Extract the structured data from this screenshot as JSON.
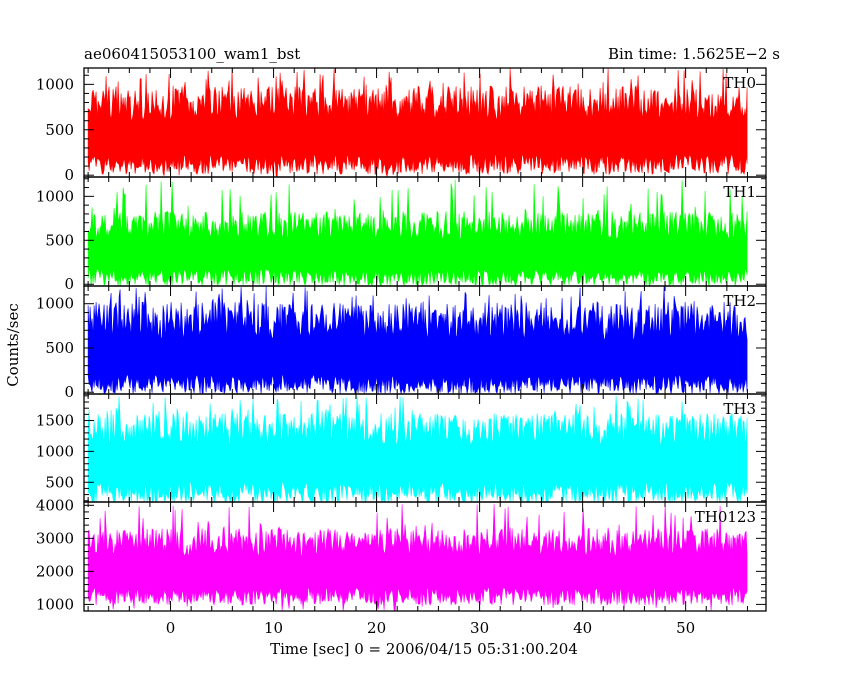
{
  "chart_data": {
    "type": "line",
    "title": "ae060415053100_wam1_bst",
    "subtitle": "Bin time: 1.5625E−2 s",
    "xlabel": "Time [sec] 0 = 2006/04/15 05:31:00.204",
    "ylabel": "Counts/sec",
    "xlim": [
      -8.4,
      57.8
    ],
    "x_ticks": [
      0,
      10,
      20,
      30,
      40,
      50
    ],
    "x_range_data": [
      -8,
      56
    ],
    "grid": false,
    "panels": [
      {
        "name": "TH0",
        "color": "#ff0000",
        "ylim": [
          -20,
          1180
        ],
        "y_ticks": [
          0,
          500,
          1000
        ],
        "base": 120,
        "mean": 560,
        "high": 980,
        "peak": 1180
      },
      {
        "name": "TH1",
        "color": "#00ff00",
        "ylim": [
          -20,
          1220
        ],
        "y_ticks": [
          0,
          500,
          1000
        ],
        "base": 80,
        "mean": 470,
        "high": 830,
        "peak": 1200
      },
      {
        "name": "TH2",
        "color": "#0000ff",
        "ylim": [
          -20,
          1200
        ],
        "y_ticks": [
          0,
          500,
          1000
        ],
        "base": 90,
        "mean": 540,
        "high": 1020,
        "peak": 1200
      },
      {
        "name": "TH3",
        "color": "#00ffff",
        "ylim": [
          180,
          1930
        ],
        "y_ticks": [
          500,
          1000,
          1500
        ],
        "base": 330,
        "mean": 1050,
        "high": 1620,
        "peak": 1900
      },
      {
        "name": "TH0123",
        "color": "#ff00ff",
        "ylim": [
          800,
          4100
        ],
        "y_ticks": [
          1000,
          2000,
          3000,
          4000
        ],
        "base": 1250,
        "mean": 2350,
        "high": 3300,
        "peak": 4050
      }
    ]
  }
}
